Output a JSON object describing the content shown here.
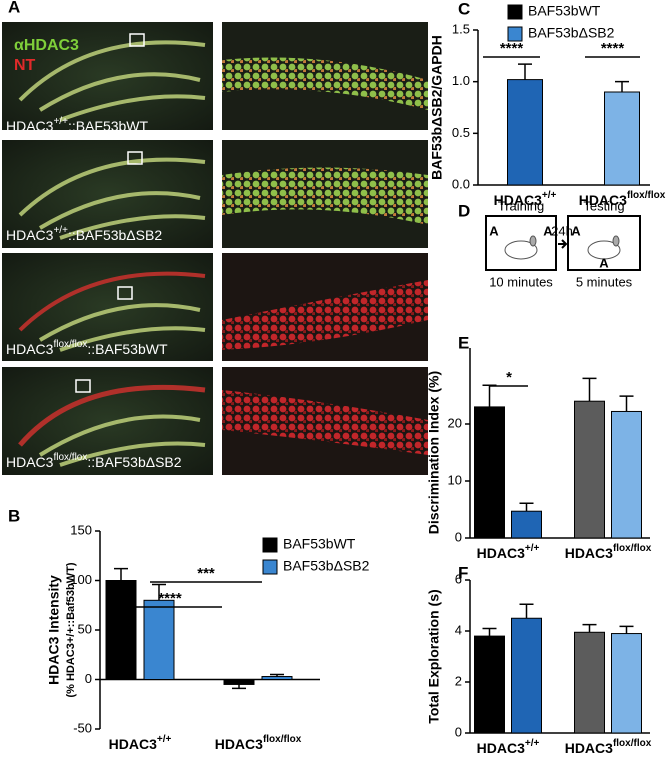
{
  "panels": [
    "A",
    "B",
    "C",
    "D",
    "E",
    "F"
  ],
  "stains": [
    "αHDAC3",
    "NT"
  ],
  "images": [
    {
      "label": [
        "HDAC3",
        "+/+",
        "::BAF53bWT"
      ]
    },
    {
      "label": [
        "HDAC3",
        "+/+",
        "::BAF53bΔSB2"
      ]
    },
    {
      "label": [
        "HDAC3",
        "flox/flox",
        "::BAF53bWT"
      ]
    },
    {
      "label": [
        "HDAC3",
        "flox/flox",
        "::BAF53bΔSB2"
      ]
    }
  ],
  "diagram": {
    "interval": "24h",
    "steps": [
      {
        "title": "Training",
        "marks": [
          "A",
          "A"
        ],
        "duration": "10 minutes"
      },
      {
        "title": "Testing",
        "marks": [
          "A",
          "A"
        ],
        "duration": "5 minutes"
      }
    ]
  },
  "chart_data": [
    {
      "type": "bar",
      "ylabel": "HDAC3 Intensity",
      "ylabel_note": "(% HDAC3+/+::Baf53bWT)",
      "categories": [
        "HDAC3+/+",
        "HDAC3flox/flox"
      ],
      "series": [
        {
          "name": "BAF53bWT",
          "color": "#000000",
          "colors": [
            "#000000",
            "#000000"
          ],
          "values": [
            100,
            -5
          ],
          "errors": [
            12,
            4
          ]
        },
        {
          "name": "BAF53bΔSB2",
          "color": "#3a86d0",
          "colors": [
            "#3a86d0",
            "#3a86d0"
          ],
          "values": [
            80,
            3
          ],
          "errors": [
            16,
            2
          ]
        }
      ],
      "annotations": [
        "****",
        "***"
      ],
      "ylim": [
        -50,
        150
      ],
      "yticks": [
        -50,
        0,
        50,
        100,
        150
      ]
    },
    {
      "type": "bar",
      "ylabel": "BAF53bΔSB2/GAPDH",
      "categories": [
        "HDAC3+/+",
        "HDAC3flox/flox"
      ],
      "legend": [
        {
          "name": "BAF53bWT",
          "color": "#000000"
        },
        {
          "name": "BAF53bΔSB2",
          "color": "#3a86d0"
        }
      ],
      "series": [
        {
          "colors": [
            "#1f65b4",
            "#7db3e6"
          ],
          "values": [
            1.02,
            0.9
          ],
          "errors": [
            0.15,
            0.1
          ]
        }
      ],
      "annotations": [
        "****",
        "****"
      ],
      "ylim": [
        0,
        1.5
      ],
      "yticks": [
        {
          "value": 0,
          "label": "0.0"
        },
        {
          "value": 0.5,
          "label": "0.5"
        },
        {
          "value": 1,
          "label": "1.0"
        },
        {
          "value": 1.5,
          "label": "1.5"
        }
      ]
    },
    {
      "type": "bar",
      "ylabel": "Discrimination Index (%)",
      "categories": [
        "HDAC3+/+",
        "HDAC3flox/flox"
      ],
      "series": [
        {
          "colors": [
            "#000000",
            "#5c5c5c"
          ],
          "values": [
            23,
            24
          ],
          "errors": [
            3.8,
            4
          ]
        },
        {
          "colors": [
            "#1f65b4",
            "#7db3e6"
          ],
          "values": [
            4.7,
            22.2
          ],
          "errors": [
            1.4,
            2.7
          ]
        }
      ],
      "annotations": [
        "*"
      ],
      "ylim": [
        0,
        30
      ],
      "yticks": [
        0,
        10,
        20
      ]
    },
    {
      "type": "bar",
      "ylabel": "Total Exploration (s)",
      "categories": [
        "HDAC3+/+",
        "HDAC3flox/flox"
      ],
      "series": [
        {
          "colors": [
            "#000000",
            "#5c5c5c"
          ],
          "values": [
            3.8,
            3.95
          ],
          "errors": [
            0.3,
            0.3
          ]
        },
        {
          "colors": [
            "#1f65b4",
            "#7db3e6"
          ],
          "values": [
            4.5,
            3.9
          ],
          "errors": [
            0.55,
            0.28
          ]
        }
      ],
      "ylim": [
        0,
        6
      ],
      "yticks": [
        0,
        2,
        4,
        6
      ]
    }
  ]
}
